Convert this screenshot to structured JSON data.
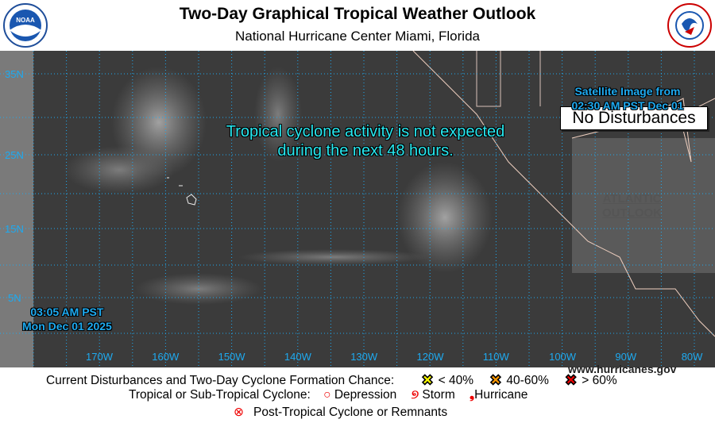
{
  "header": {
    "title": "Two-Day Graphical Tropical Weather Outlook",
    "subtitle": "National Hurricane Center  Miami, Florida",
    "left_logo": "NOAA",
    "right_logo": "NATIONAL WEATHER SERVICE"
  },
  "map": {
    "status_box": "No Disturbances",
    "message_line1": "Tropical cyclone activity is not expected",
    "message_line2": "during the next 48 hours.",
    "satellite_line1": "Satellite Image from",
    "satellite_line2": "02:30 AM PST Dec 01",
    "issued_time": "03:05 AM PST",
    "issued_date": "Mon Dec 01 2025",
    "atlantic_link_line1": "ATLANTIC",
    "atlantic_link_line2": "OUTLOOK",
    "website": "www.hurricanes.gov",
    "lat_labels": [
      "35N",
      "25N",
      "15N",
      "5N"
    ],
    "lon_labels": [
      "170W",
      "160W",
      "150W",
      "140W",
      "130W",
      "120W",
      "110W",
      "100W",
      "90W",
      "80W"
    ],
    "grid_color": "#1eaaf0"
  },
  "legend": {
    "disturbances_label": "Current Disturbances and Two-Day Cyclone Formation Chance:",
    "low": "< 40%",
    "medium": "40-60%",
    "high": "> 60%",
    "low_color": "#ffff00",
    "medium_color": "#ff9900",
    "high_color": "#ee0000",
    "cyclone_label": "Tropical or Sub-Tropical Cyclone:",
    "depression": "Depression",
    "storm": "Storm",
    "hurricane": "Hurricane",
    "post_tropical": "Post-Tropical Cyclone or Remnants"
  }
}
